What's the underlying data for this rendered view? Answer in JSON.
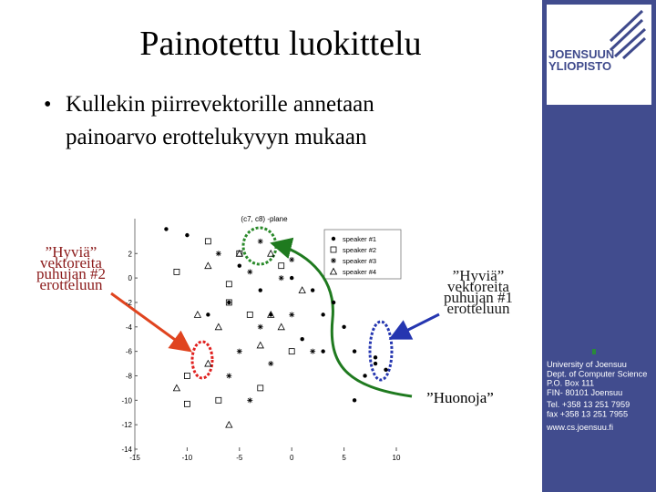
{
  "title": "Painotettu luokittelu",
  "bullet": [
    "Kullekin piirrevektorille annetaan",
    "painoarvo erottelukyvyn mukaan"
  ],
  "labels": {
    "good2": [
      "”Hyviä”",
      "vektoreita",
      "puhujan #2",
      "erotteluun"
    ],
    "good1": [
      "”Hyviä”",
      "vektoreita",
      "puhujan #1",
      "erotteluun"
    ],
    "bad": "”Huonoja”"
  },
  "sidebar": {
    "logo": [
      "JOENSUUN",
      "YLIOPISTO"
    ],
    "unit": [
      "University of Joensuu",
      "Department of Computer Science"
    ],
    "contact": [
      "University of Joensuu",
      "Dept. of Computer Science",
      "P.O. Box 111",
      "FIN- 80101 Joensuu",
      "Tel. +358 13 251 7959",
      "fax +358 13 251 7955",
      "www.cs.joensuu.fi"
    ]
  },
  "chart_data": {
    "type": "scatter",
    "title": "(c7, c8) -plane",
    "xlim": [
      -15,
      10
    ],
    "ylim": [
      -14,
      5
    ],
    "xticks": [
      -15,
      -10,
      -5,
      0,
      5,
      10
    ],
    "yticks": [
      2,
      0,
      -2,
      -4,
      -6,
      -8,
      -10,
      -12,
      -14
    ],
    "series": [
      {
        "name": "speaker #1",
        "marker": "dot",
        "color": "#000000",
        "x": [
          -10,
          -12,
          -5,
          -3,
          0,
          2,
          3,
          5,
          6,
          7,
          8,
          4,
          1,
          -2,
          6,
          8,
          9,
          -8,
          -6,
          3
        ],
        "y": [
          3.5,
          4,
          1,
          -1,
          0,
          -1,
          -3,
          -4,
          -6,
          -8,
          -6.5,
          -2,
          -5,
          -3,
          -10,
          -7,
          -7.5,
          -3,
          -2,
          -6
        ]
      },
      {
        "name": "speaker #2",
        "marker": "square",
        "color": "#000000",
        "x": [
          -8,
          -6,
          -10,
          -5,
          0,
          -3,
          -7,
          -10,
          -4,
          -1,
          -11,
          -6
        ],
        "y": [
          3,
          -2,
          -8,
          2,
          -6,
          -9,
          -10,
          -10.3,
          -3,
          1,
          0.5,
          -0.5
        ]
      },
      {
        "name": "speaker #3",
        "marker": "star",
        "color": "#000000",
        "x": [
          -7,
          -3,
          -4,
          0,
          -3,
          -5,
          -2,
          -6,
          -4,
          0,
          2,
          -1
        ],
        "y": [
          2,
          3,
          0.5,
          1.5,
          -4,
          -6,
          -7,
          -8,
          -10,
          -3,
          -6,
          0
        ]
      },
      {
        "name": "speaker #4",
        "marker": "triangle",
        "color": "#000000",
        "x": [
          -5,
          -8,
          -2,
          -9,
          -7,
          -1,
          -3,
          -11,
          -6,
          -2,
          1,
          -8
        ],
        "y": [
          2,
          1,
          2,
          -3,
          -4,
          -4,
          -5.5,
          -9,
          -12,
          -3,
          -1,
          -7
        ]
      }
    ]
  }
}
